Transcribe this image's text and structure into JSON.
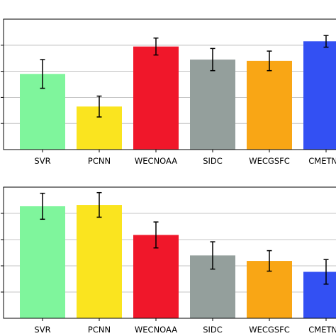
{
  "chart_data": [
    {
      "type": "bar",
      "categories": [
        "SVR",
        "PCNN",
        "WECNOAA",
        "SIDC",
        "WECGSFC",
        "CMETNN"
      ],
      "values": [
        0.58,
        0.33,
        0.79,
        0.69,
        0.68,
        0.83
      ],
      "errors": [
        0.11,
        0.08,
        0.065,
        0.085,
        0.075,
        0.045
      ],
      "colors": [
        "#7ff59c",
        "#fae41f",
        "#f0172a",
        "#949f9c",
        "#f9a615",
        "#3350f3"
      ],
      "ylim": [
        0,
        1.0
      ],
      "grid": true
    },
    {
      "type": "bar",
      "categories": [
        "SVR",
        "PCNN",
        "WECNOAA",
        "SIDC",
        "WECGSFC",
        "CMETNN"
      ],
      "values": [
        0.82,
        0.83,
        0.61,
        0.46,
        0.42,
        0.34
      ],
      "errors": [
        0.095,
        0.09,
        0.095,
        0.1,
        0.075,
        0.09
      ],
      "colors": [
        "#7ff59c",
        "#fae41f",
        "#f0172a",
        "#949f9c",
        "#f9a615",
        "#3350f3"
      ],
      "ylim": [
        0,
        0.96
      ],
      "grid": true
    }
  ]
}
